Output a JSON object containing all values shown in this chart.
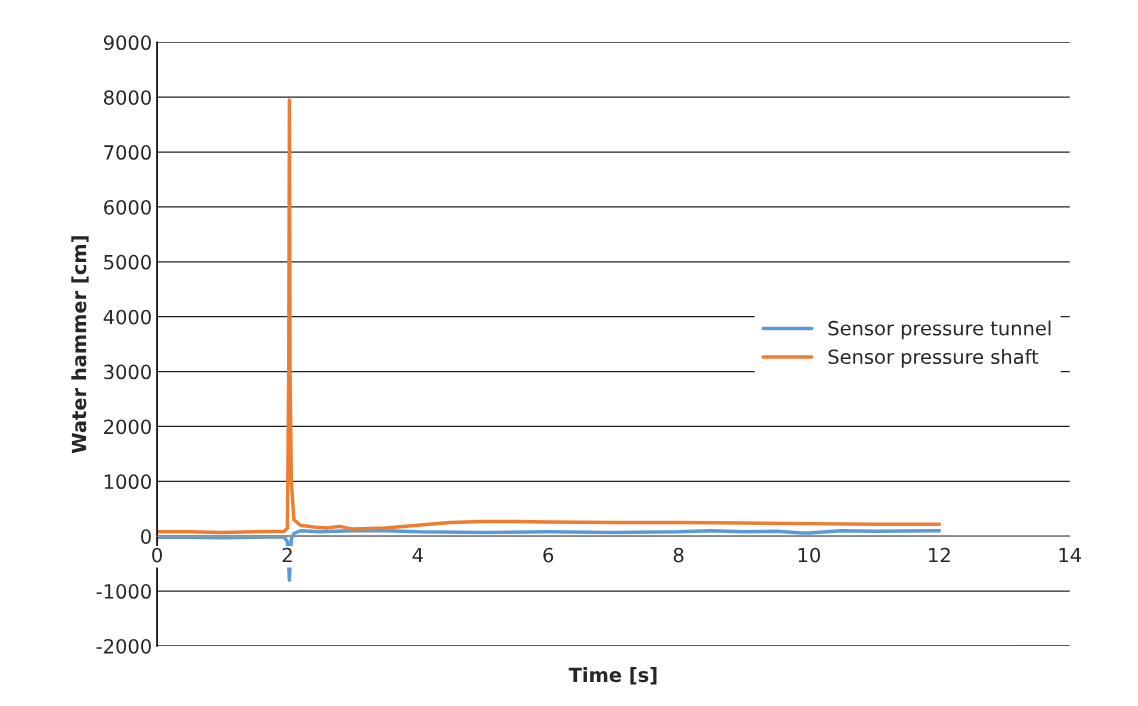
{
  "chart_data": {
    "type": "line",
    "xlabel": "Time [s]",
    "ylabel": "Water hammer [cm]",
    "xlim": [
      0,
      14
    ],
    "xticks": [
      0,
      2,
      4,
      6,
      8,
      10,
      12,
      14
    ],
    "ylim": [
      -2000,
      9000
    ],
    "yticks": [
      -2000,
      -1000,
      0,
      1000,
      2000,
      3000,
      4000,
      5000,
      6000,
      7000,
      8000,
      9000
    ],
    "grid": "y",
    "legend": "right",
    "line_style": "solid",
    "marker": "none",
    "series": [
      {
        "name": "Sensor pressure tunnel",
        "color": "#5b9bd5",
        "x": [
          0,
          0.5,
          1,
          1.5,
          1.95,
          2.0,
          2.03,
          2.06,
          2.1,
          2.2,
          2.5,
          3,
          3.5,
          4,
          5,
          6,
          7,
          8,
          8.5,
          9,
          9.5,
          9.9,
          10,
          10.5,
          11,
          12
        ],
        "values": [
          -20,
          -20,
          -30,
          -20,
          -10,
          -100,
          -800,
          -50,
          50,
          100,
          80,
          100,
          100,
          80,
          70,
          80,
          70,
          80,
          100,
          80,
          90,
          60,
          60,
          100,
          90,
          100
        ]
      },
      {
        "name": "Sensor pressure shaft",
        "color": "#ed7d31",
        "x": [
          0,
          0.5,
          1,
          1.5,
          1.95,
          2.0,
          2.02,
          2.03,
          2.04,
          2.06,
          2.1,
          2.2,
          2.4,
          2.6,
          2.8,
          3.0,
          3.5,
          4,
          4.5,
          5,
          5.5,
          6,
          7,
          8,
          9,
          10,
          11,
          12
        ],
        "values": [
          80,
          80,
          70,
          80,
          90,
          150,
          3000,
          7950,
          3000,
          1000,
          300,
          200,
          170,
          150,
          180,
          130,
          150,
          200,
          250,
          270,
          270,
          260,
          250,
          250,
          240,
          230,
          220,
          220
        ]
      }
    ]
  }
}
